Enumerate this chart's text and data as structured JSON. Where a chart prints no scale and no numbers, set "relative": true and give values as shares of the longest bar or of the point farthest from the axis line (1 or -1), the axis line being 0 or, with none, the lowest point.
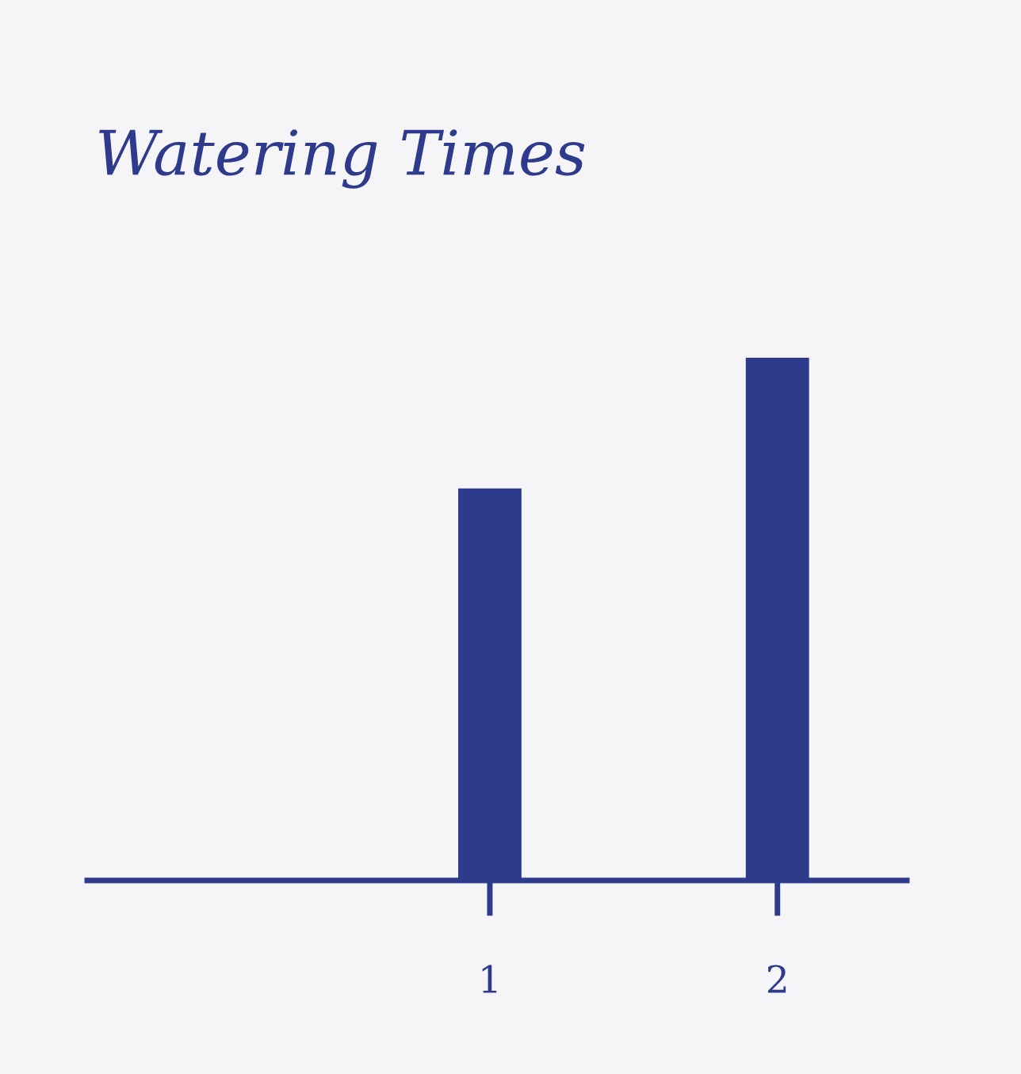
{
  "chart_data": {
    "type": "bar",
    "title": "Watering Times",
    "relative": true,
    "x": [
      1,
      2
    ],
    "series": [
      {
        "color": "#2e3a8c",
        "values": [
          0.75,
          1
        ]
      }
    ],
    "xlim": [
      -0.4,
      2.45
    ],
    "xticks": [
      1,
      2
    ],
    "tick_labels": "x",
    "legend": false
  }
}
